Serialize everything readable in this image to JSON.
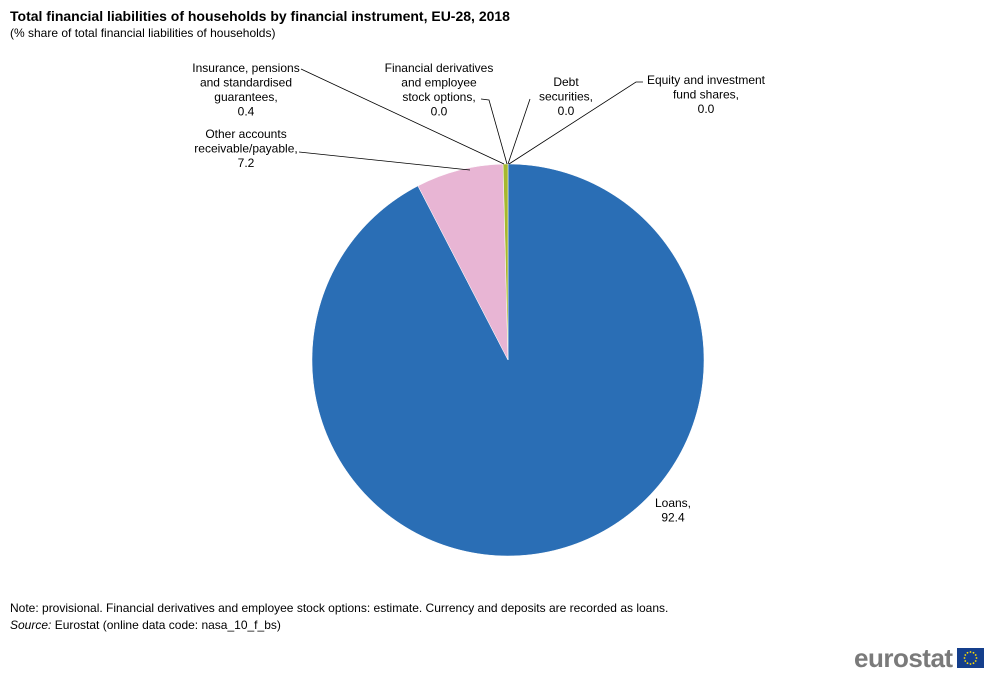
{
  "header": {
    "title": "Total financial liabilities of households by financial instrument, EU-28, 2018",
    "subtitle": "(% share of total financial liabilities of households)"
  },
  "chart_data": {
    "type": "pie",
    "title": "Total financial liabilities of households by financial instrument, EU-28, 2018",
    "subtitle": "(% share of total financial liabilities of households)",
    "slices": [
      {
        "label": [
          "Loans,",
          "92.4"
        ],
        "value": 92.4,
        "color": "#2a6eb5"
      },
      {
        "label": [
          "Other accounts",
          "receivable/payable,",
          "7.2"
        ],
        "value": 7.2,
        "color": "#e8b5d4"
      },
      {
        "label": [
          "Insurance, pensions",
          "and standardised",
          "guarantees,",
          "0.4"
        ],
        "value": 0.4,
        "color": "#a6b82f"
      },
      {
        "label": [
          "Financial derivatives",
          "and employee",
          "stock options,",
          "0.0"
        ],
        "value": 0.0,
        "color": "#6b6b6b"
      },
      {
        "label": [
          "Debt",
          "securities,",
          "0.0"
        ],
        "value": 0.0,
        "color": "#f3c03b"
      },
      {
        "label": [
          "Equity and investment",
          "fund shares,",
          "0.0"
        ],
        "value": 0.0,
        "color": "#f28c28"
      }
    ]
  },
  "footer": {
    "note": "Note: provisional. Financial derivatives and employee stock options: estimate. Currency and deposits are recorded as loans.",
    "source_label": "Source:",
    "source_text": "Eurostat (online data code: nasa_10_f_bs)",
    "logo_text": "eurostat"
  },
  "colors": {
    "loans": "#2a6eb5",
    "other": "#e8b5d4",
    "insurance": "#a6b82f",
    "flag": "#153f8c",
    "flag_stars": "#ffdd00"
  }
}
